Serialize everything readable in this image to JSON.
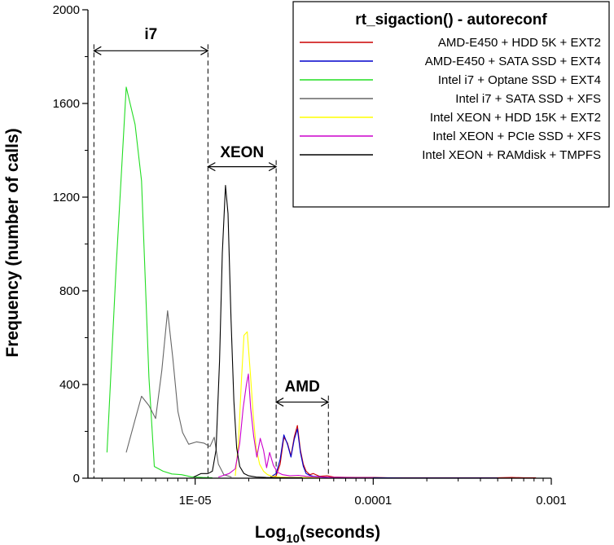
{
  "chart_data": {
    "type": "line",
    "title": "rt_sigaction() - autoreconf",
    "xlabel_main": "Log",
    "xlabel_sub": "10",
    "xlabel_tail": "(seconds)",
    "ylabel": "Frequency (number of calls)",
    "xscale": "log",
    "xlim": [
      2.5e-06,
      0.001
    ],
    "ylim": [
      0,
      2000
    ],
    "x_ticks": [
      {
        "value": 1e-05,
        "label": "1E-05"
      },
      {
        "value": 0.0001,
        "label": "0.0001"
      },
      {
        "value": 0.001,
        "label": "0.001"
      }
    ],
    "y_ticks": [
      {
        "value": 0,
        "label": "0"
      },
      {
        "value": 400,
        "label": "400"
      },
      {
        "value": 800,
        "label": "800"
      },
      {
        "value": 1200,
        "label": "1200"
      },
      {
        "value": 1600,
        "label": "1600"
      },
      {
        "value": 2000,
        "label": "2000"
      }
    ],
    "legend_position": "top-right",
    "series": [
      {
        "name": "AMD-E450 + HDD 5K + EXT2",
        "color": "#cc0000",
        "points": [
          [
            2.65e-05,
            5
          ],
          [
            2.85e-05,
            10
          ],
          [
            3e-05,
            60
          ],
          [
            3.15e-05,
            175
          ],
          [
            3.3e-05,
            150
          ],
          [
            3.45e-05,
            95
          ],
          [
            3.6e-05,
            175
          ],
          [
            3.75e-05,
            225
          ],
          [
            3.9e-05,
            120
          ],
          [
            4.05e-05,
            60
          ],
          [
            4.2e-05,
            30
          ],
          [
            4.4e-05,
            15
          ],
          [
            4.6e-05,
            20
          ],
          [
            5e-05,
            8
          ],
          [
            5.5e-05,
            10
          ],
          [
            6e-05,
            5
          ],
          [
            7e-05,
            4
          ],
          [
            8e-05,
            3
          ],
          [
            9e-05,
            3
          ],
          [
            0.0001,
            3
          ],
          [
            0.00012,
            2
          ],
          [
            0.00015,
            2
          ],
          [
            0.0002,
            2
          ],
          [
            0.0003,
            2
          ],
          [
            0.0004,
            2
          ],
          [
            0.0005,
            2
          ],
          [
            0.0006,
            3
          ],
          [
            0.0007,
            2
          ],
          [
            0.00082,
            2
          ]
        ]
      },
      {
        "name": "AMD-E450 + SATA SSD + EXT4",
        "color": "#0000cc",
        "points": [
          [
            2.65e-05,
            5
          ],
          [
            2.85e-05,
            20
          ],
          [
            3e-05,
            80
          ],
          [
            3.15e-05,
            185
          ],
          [
            3.3e-05,
            145
          ],
          [
            3.45e-05,
            90
          ],
          [
            3.6e-05,
            165
          ],
          [
            3.75e-05,
            210
          ],
          [
            3.9e-05,
            110
          ],
          [
            4.05e-05,
            50
          ],
          [
            4.2e-05,
            20
          ],
          [
            4.4e-05,
            12
          ],
          [
            4.6e-05,
            8
          ],
          [
            5e-05,
            6
          ],
          [
            5.5e-05,
            4
          ],
          [
            6e-05,
            3
          ],
          [
            7e-05,
            2
          ],
          [
            0.0001,
            2
          ],
          [
            0.00015,
            1
          ],
          [
            0.0002,
            1
          ],
          [
            0.0003,
            1
          ],
          [
            0.0005,
            1
          ]
        ]
      },
      {
        "name": "Intel i7 + Optane SSD + EXT4",
        "color": "#22dd22",
        "points": [
          [
            3.2e-06,
            110
          ],
          [
            3.6e-06,
            900
          ],
          [
            4.1e-06,
            1670
          ],
          [
            4.6e-06,
            1510
          ],
          [
            5e-06,
            1270
          ],
          [
            5.5e-06,
            430
          ],
          [
            5.9e-06,
            50
          ],
          [
            6.6e-06,
            30
          ],
          [
            7.4e-06,
            18
          ],
          [
            8.4e-06,
            15
          ],
          [
            9.5e-06,
            6
          ],
          [
            1.1e-05,
            3
          ],
          [
            1.25e-05,
            2
          ]
        ]
      },
      {
        "name": "Intel i7 + SATA SSD + XFS",
        "color": "#666666",
        "points": [
          [
            4.1e-06,
            110
          ],
          [
            4.6e-06,
            250
          ],
          [
            5e-06,
            350
          ],
          [
            5.5e-06,
            310
          ],
          [
            6e-06,
            255
          ],
          [
            6.5e-06,
            460
          ],
          [
            7e-06,
            715
          ],
          [
            7.5e-06,
            510
          ],
          [
            8e-06,
            285
          ],
          [
            8.5e-06,
            195
          ],
          [
            9.2e-06,
            145
          ],
          [
            1.02e-05,
            155
          ],
          [
            1.12e-05,
            150
          ],
          [
            1.21e-05,
            135
          ],
          [
            1.28e-05,
            175
          ],
          [
            1.35e-05,
            60
          ],
          [
            1.45e-05,
            15
          ],
          [
            1.6e-05,
            5
          ]
        ]
      },
      {
        "name": "Intel XEON + HDD 15K + EXT2",
        "color": "#ffff00",
        "points": [
          [
            1.68e-05,
            10
          ],
          [
            1.75e-05,
            150
          ],
          [
            1.82e-05,
            420
          ],
          [
            1.88e-05,
            610
          ],
          [
            1.96e-05,
            625
          ],
          [
            2.04e-05,
            450
          ],
          [
            2.12e-05,
            270
          ],
          [
            2.2e-05,
            130
          ],
          [
            2.3e-05,
            60
          ],
          [
            2.42e-05,
            30
          ],
          [
            2.55e-05,
            15
          ],
          [
            2.7e-05,
            8
          ],
          [
            3e-05,
            5
          ],
          [
            3.4e-05,
            3
          ],
          [
            4e-05,
            3
          ],
          [
            5e-05,
            2
          ]
        ]
      },
      {
        "name": "Intel XEON + PCIe SSD + XFS",
        "color": "#cc00cc",
        "points": [
          [
            1.35e-05,
            5
          ],
          [
            1.55e-05,
            20
          ],
          [
            1.68e-05,
            40
          ],
          [
            1.78e-05,
            150
          ],
          [
            1.86e-05,
            300
          ],
          [
            1.94e-05,
            400
          ],
          [
            1.99e-05,
            445
          ],
          [
            2.05e-05,
            300
          ],
          [
            2.13e-05,
            180
          ],
          [
            2.22e-05,
            90
          ],
          [
            2.32e-05,
            170
          ],
          [
            2.42e-05,
            120
          ],
          [
            2.52e-05,
            45
          ],
          [
            2.62e-05,
            110
          ],
          [
            2.75e-05,
            55
          ],
          [
            2.9e-05,
            25
          ],
          [
            3.1e-05,
            15
          ],
          [
            3.4e-05,
            10
          ],
          [
            3.8e-05,
            12
          ],
          [
            4.2e-05,
            8
          ],
          [
            5e-05,
            5
          ],
          [
            6e-05,
            3
          ],
          [
            8e-05,
            2
          ],
          [
            0.0001,
            2
          ]
        ]
      },
      {
        "name": "Intel XEON + RAMdisk + TMPFS",
        "color": "#000000",
        "points": [
          [
            9.8e-06,
            5
          ],
          [
            1.08e-05,
            20
          ],
          [
            1.18e-05,
            20
          ],
          [
            1.25e-05,
            30
          ],
          [
            1.31e-05,
            120
          ],
          [
            1.37e-05,
            500
          ],
          [
            1.42e-05,
            960
          ],
          [
            1.48e-05,
            1250
          ],
          [
            1.53e-05,
            1130
          ],
          [
            1.59e-05,
            680
          ],
          [
            1.65e-05,
            330
          ],
          [
            1.71e-05,
            130
          ],
          [
            1.78e-05,
            50
          ],
          [
            1.88e-05,
            20
          ],
          [
            2e-05,
            10
          ],
          [
            2.2e-05,
            5
          ],
          [
            2.5e-05,
            3
          ],
          [
            3e-05,
            2
          ],
          [
            4e-05,
            2
          ]
        ]
      }
    ],
    "annotations": [
      {
        "label": "i7",
        "x_from": 2.7e-06,
        "x_to": 1.18e-05,
        "label_y": 1900,
        "arrow_y": 1825
      },
      {
        "label": "XEON",
        "x_from": 1.18e-05,
        "x_to": 2.85e-05,
        "label_y": 1395,
        "arrow_y": 1330
      },
      {
        "label": "AMD",
        "x_from": 2.85e-05,
        "x_to": 5.6e-05,
        "label_y": 395,
        "arrow_y": 325
      }
    ]
  }
}
